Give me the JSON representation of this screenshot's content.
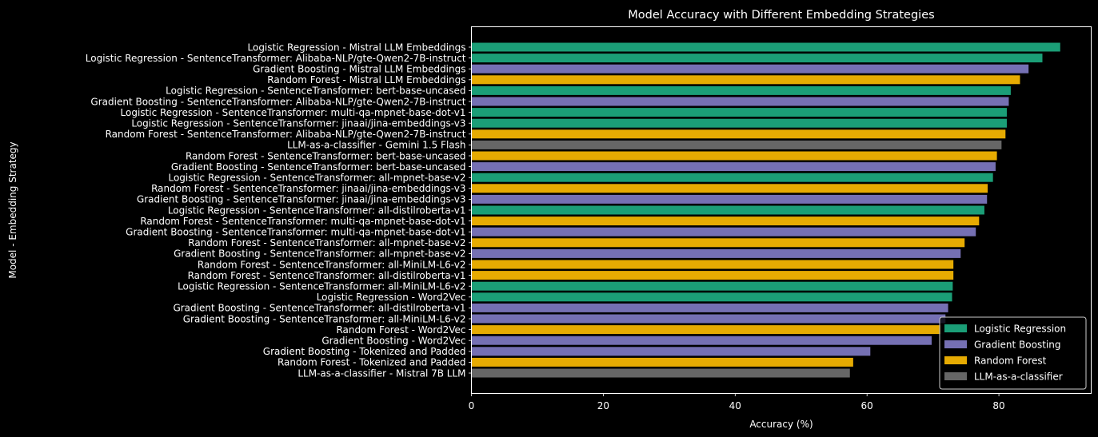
{
  "chart_data": {
    "type": "bar",
    "orientation": "horizontal",
    "title": "Model Accuracy with Different Embedding Strategies",
    "xlabel": "Accuracy (%)",
    "ylabel": "Model - Embedding Strategy",
    "xlim": [
      0,
      94
    ],
    "xticks": [
      0,
      20,
      40,
      60,
      80
    ],
    "grid": false,
    "legend_position": "bottom-right",
    "colors": {
      "Logistic Regression": "#1b9e77",
      "Gradient Boosting": "#7570b3",
      "Random Forest": "#e6ab02",
      "LLM-as-a-classifier": "#666666"
    },
    "legend": [
      "Logistic Regression",
      "Gradient Boosting",
      "Random Forest",
      "LLM-as-a-classifier"
    ],
    "bars": [
      {
        "label": "Logistic Regression - Mistral LLM Embeddings",
        "group": "Logistic Regression",
        "value": 89.3
      },
      {
        "label": "Logistic Regression - SentenceTransformer: Alibaba-NLP/gte-Qwen2-7B-instruct",
        "group": "Logistic Regression",
        "value": 86.6
      },
      {
        "label": "Gradient Boosting - Mistral LLM Embeddings",
        "group": "Gradient Boosting",
        "value": 84.5
      },
      {
        "label": "Random Forest - Mistral LLM Embeddings",
        "group": "Random Forest",
        "value": 83.2
      },
      {
        "label": "Logistic Regression - SentenceTransformer: bert-base-uncased",
        "group": "Logistic Regression",
        "value": 81.8
      },
      {
        "label": "Gradient Boosting - SentenceTransformer: Alibaba-NLP/gte-Qwen2-7B-instruct",
        "group": "Gradient Boosting",
        "value": 81.5
      },
      {
        "label": "Logistic Regression - SentenceTransformer: multi-qa-mpnet-base-dot-v1",
        "group": "Logistic Regression",
        "value": 81.2
      },
      {
        "label": "Logistic Regression - SentenceTransformer: jinaai/jina-embeddings-v3",
        "group": "Logistic Regression",
        "value": 81.2
      },
      {
        "label": "Random Forest - SentenceTransformer: Alibaba-NLP/gte-Qwen2-7B-instruct",
        "group": "Random Forest",
        "value": 81.0
      },
      {
        "label": "LLM-as-a-classifier - Gemini 1.5 Flash",
        "group": "LLM-as-a-classifier",
        "value": 80.4
      },
      {
        "label": "Random Forest - SentenceTransformer: bert-base-uncased",
        "group": "Random Forest",
        "value": 79.7
      },
      {
        "label": "Gradient Boosting - SentenceTransformer: bert-base-uncased",
        "group": "Gradient Boosting",
        "value": 79.5
      },
      {
        "label": "Logistic Regression - SentenceTransformer: all-mpnet-base-v2",
        "group": "Logistic Regression",
        "value": 79.1
      },
      {
        "label": "Random Forest - SentenceTransformer: jinaai/jina-embeddings-v3",
        "group": "Random Forest",
        "value": 78.3
      },
      {
        "label": "Gradient Boosting - SentenceTransformer: jinaai/jina-embeddings-v3",
        "group": "Gradient Boosting",
        "value": 78.2
      },
      {
        "label": "Logistic Regression - SentenceTransformer: all-distilroberta-v1",
        "group": "Logistic Regression",
        "value": 77.8
      },
      {
        "label": "Random Forest - SentenceTransformer: multi-qa-mpnet-base-dot-v1",
        "group": "Random Forest",
        "value": 77.0
      },
      {
        "label": "Gradient Boosting - SentenceTransformer: multi-qa-mpnet-base-dot-v1",
        "group": "Gradient Boosting",
        "value": 76.5
      },
      {
        "label": "Random Forest - SentenceTransformer: all-mpnet-base-v2",
        "group": "Random Forest",
        "value": 74.8
      },
      {
        "label": "Gradient Boosting - SentenceTransformer: all-mpnet-base-v2",
        "group": "Gradient Boosting",
        "value": 74.2
      },
      {
        "label": "Random Forest - SentenceTransformer: all-MiniLM-L6-v2",
        "group": "Random Forest",
        "value": 73.1
      },
      {
        "label": "Random Forest - SentenceTransformer: all-distilroberta-v1",
        "group": "Random Forest",
        "value": 73.1
      },
      {
        "label": "Logistic Regression - SentenceTransformer: all-MiniLM-L6-v2",
        "group": "Logistic Regression",
        "value": 73.0
      },
      {
        "label": "Logistic Regression - Word2Vec",
        "group": "Logistic Regression",
        "value": 72.9
      },
      {
        "label": "Gradient Boosting - SentenceTransformer: all-distilroberta-v1",
        "group": "Gradient Boosting",
        "value": 72.3
      },
      {
        "label": "Gradient Boosting - SentenceTransformer: all-MiniLM-L6-v2",
        "group": "Gradient Boosting",
        "value": 71.9
      },
      {
        "label": "Random Forest - Word2Vec",
        "group": "Random Forest",
        "value": 71.2
      },
      {
        "label": "Gradient Boosting - Word2Vec",
        "group": "Gradient Boosting",
        "value": 69.8
      },
      {
        "label": "Gradient Boosting - Tokenized and Padded",
        "group": "Gradient Boosting",
        "value": 60.5
      },
      {
        "label": "Random Forest - Tokenized and Padded",
        "group": "Random Forest",
        "value": 57.9
      },
      {
        "label": "LLM-as-a-classifier - Mistral 7B LLM",
        "group": "LLM-as-a-classifier",
        "value": 57.4
      }
    ]
  }
}
